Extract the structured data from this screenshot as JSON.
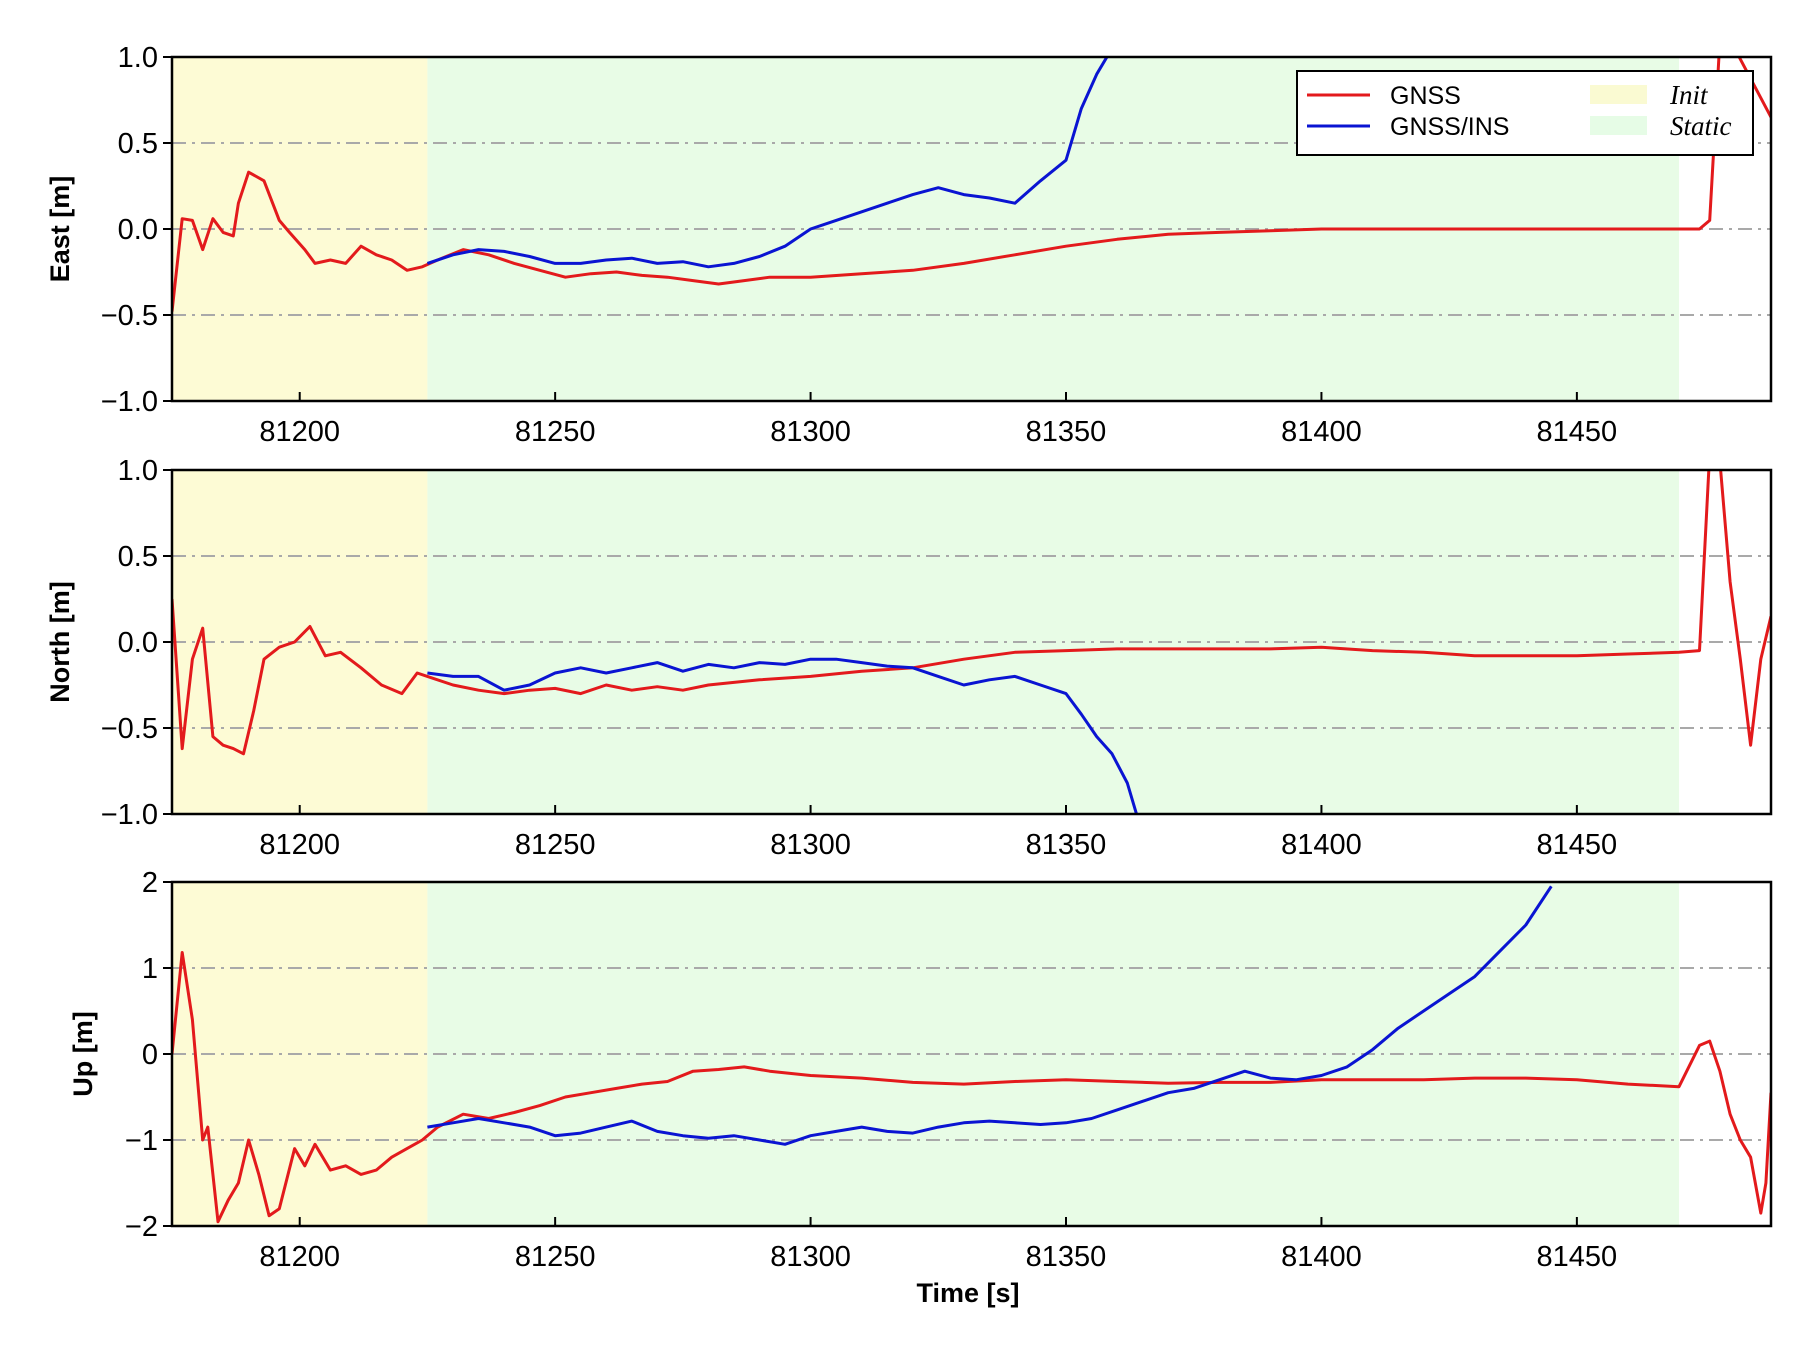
{
  "chart_data": {
    "type": "line",
    "xlabel": "Time [s]",
    "xlim": [
      81175,
      81488
    ],
    "x_ticks": [
      "81200",
      "81250",
      "81300",
      "81350",
      "81400",
      "81450"
    ],
    "x_tick_values": [
      81200,
      81250,
      81300,
      81350,
      81400,
      81450
    ],
    "grid": "horizontal dash-dot",
    "legend": {
      "placement": "top-right",
      "entries": [
        {
          "label": "GNSS",
          "color": "#e31a1c",
          "kind": "line"
        },
        {
          "label": "GNSS/INS",
          "color": "#0a14d2",
          "kind": "line"
        },
        {
          "label": "Init",
          "color": "#fafad2",
          "kind": "patch"
        },
        {
          "label": "Static",
          "color": "#e6fce6",
          "kind": "patch"
        }
      ]
    },
    "shaded_regions": [
      {
        "label": "Init",
        "x": [
          81175,
          81225
        ],
        "color": "#fdfbd5"
      },
      {
        "label": "Static",
        "x": [
          81225,
          81470
        ],
        "color": "#e8fce6"
      }
    ],
    "panels": [
      {
        "ylabel": "East [m]",
        "ylim": [
          -1.0,
          1.0
        ],
        "y_ticks": [
          "1.0",
          "0.5",
          "0.0",
          "−0.5",
          "−1.0"
        ],
        "y_tick_values": [
          1.0,
          0.5,
          0.0,
          -0.5,
          -1.0
        ],
        "grid_values": [
          0.5,
          0.0,
          -0.5
        ],
        "series": [
          {
            "name": "GNSS",
            "color": "#e31a1c",
            "x": [
              81175,
              81177,
              81179,
              81181,
              81183,
              81185,
              81187,
              81188,
              81190,
              81193,
              81196,
              81198,
              81201,
              81203,
              81206,
              81209,
              81212,
              81215,
              81218,
              81221,
              81224,
              81227,
              81232,
              81237,
              81242,
              81247,
              81252,
              81257,
              81262,
              81267,
              81272,
              81277,
              81282,
              81287,
              81292,
              81300,
              81310,
              81320,
              81330,
              81340,
              81350,
              81360,
              81370,
              81380,
              81390,
              81400,
              81410,
              81420,
              81430,
              81440,
              81450,
              81460,
              81470,
              81474,
              81476,
              81478,
              81480,
              81488
            ],
            "values": [
              -0.48,
              0.06,
              0.05,
              -0.12,
              0.06,
              -0.02,
              -0.04,
              0.15,
              0.33,
              0.28,
              0.05,
              -0.02,
              -0.12,
              -0.2,
              -0.18,
              -0.2,
              -0.1,
              -0.15,
              -0.18,
              -0.24,
              -0.22,
              -0.18,
              -0.12,
              -0.15,
              -0.2,
              -0.24,
              -0.28,
              -0.26,
              -0.25,
              -0.27,
              -0.28,
              -0.3,
              -0.32,
              -0.3,
              -0.28,
              -0.28,
              -0.26,
              -0.24,
              -0.2,
              -0.15,
              -0.1,
              -0.06,
              -0.03,
              -0.02,
              -0.01,
              0.0,
              0.0,
              0.0,
              0.0,
              0.0,
              0.0,
              0.0,
              0.0,
              0.0,
              0.05,
              1.1,
              1.1,
              0.65
            ]
          },
          {
            "name": "GNSS/INS",
            "color": "#0a14d2",
            "x": [
              81225,
              81230,
              81235,
              81240,
              81245,
              81250,
              81255,
              81260,
              81265,
              81270,
              81275,
              81280,
              81285,
              81290,
              81295,
              81300,
              81305,
              81310,
              81315,
              81320,
              81325,
              81330,
              81335,
              81340,
              81345,
              81350,
              81353,
              81356,
              81359
            ],
            "values": [
              -0.2,
              -0.15,
              -0.12,
              -0.13,
              -0.16,
              -0.2,
              -0.2,
              -0.18,
              -0.17,
              -0.2,
              -0.19,
              -0.22,
              -0.2,
              -0.16,
              -0.1,
              0.0,
              0.05,
              0.1,
              0.15,
              0.2,
              0.24,
              0.2,
              0.18,
              0.15,
              0.28,
              0.4,
              0.7,
              0.9,
              1.05
            ]
          }
        ]
      },
      {
        "ylabel": "North [m]",
        "ylim": [
          -1.0,
          1.0
        ],
        "y_ticks": [
          "1.0",
          "0.5",
          "0.0",
          "−0.5",
          "−1.0"
        ],
        "y_tick_values": [
          1.0,
          0.5,
          0.0,
          -0.5,
          -1.0
        ],
        "grid_values": [
          0.5,
          0.0,
          -0.5
        ],
        "series": [
          {
            "name": "GNSS",
            "color": "#e31a1c",
            "x": [
              81175,
              81177,
              81179,
              81181,
              81183,
              81185,
              81187,
              81189,
              81191,
              81193,
              81196,
              81199,
              81202,
              81205,
              81208,
              81212,
              81216,
              81220,
              81223,
              81225,
              81230,
              81235,
              81240,
              81245,
              81250,
              81255,
              81260,
              81265,
              81270,
              81275,
              81280,
              81290,
              81300,
              81310,
              81320,
              81330,
              81340,
              81350,
              81360,
              81370,
              81380,
              81390,
              81400,
              81410,
              81420,
              81430,
              81440,
              81450,
              81460,
              81470,
              81474,
              81476,
              81478,
              81480,
              81482,
              81484,
              81486,
              81488
            ],
            "values": [
              0.25,
              -0.62,
              -0.1,
              0.08,
              -0.55,
              -0.6,
              -0.62,
              -0.65,
              -0.4,
              -0.1,
              -0.03,
              0.0,
              0.09,
              -0.08,
              -0.06,
              -0.15,
              -0.25,
              -0.3,
              -0.18,
              -0.2,
              -0.25,
              -0.28,
              -0.3,
              -0.28,
              -0.27,
              -0.3,
              -0.25,
              -0.28,
              -0.26,
              -0.28,
              -0.25,
              -0.22,
              -0.2,
              -0.17,
              -0.15,
              -0.1,
              -0.06,
              -0.05,
              -0.04,
              -0.04,
              -0.04,
              -0.04,
              -0.03,
              -0.05,
              -0.06,
              -0.08,
              -0.08,
              -0.08,
              -0.07,
              -0.06,
              -0.05,
              1.1,
              1.05,
              0.35,
              -0.1,
              -0.6,
              -0.1,
              0.15
            ]
          },
          {
            "name": "GNSS/INS",
            "color": "#0a14d2",
            "x": [
              81225,
              81230,
              81235,
              81240,
              81245,
              81250,
              81255,
              81260,
              81265,
              81270,
              81275,
              81280,
              81285,
              81290,
              81295,
              81300,
              81305,
              81310,
              81315,
              81320,
              81325,
              81330,
              81335,
              81340,
              81345,
              81350,
              81353,
              81356,
              81359,
              81362,
              81364
            ],
            "values": [
              -0.18,
              -0.2,
              -0.2,
              -0.28,
              -0.25,
              -0.18,
              -0.15,
              -0.18,
              -0.15,
              -0.12,
              -0.17,
              -0.13,
              -0.15,
              -0.12,
              -0.13,
              -0.1,
              -0.1,
              -0.12,
              -0.14,
              -0.15,
              -0.2,
              -0.25,
              -0.22,
              -0.2,
              -0.25,
              -0.3,
              -0.42,
              -0.55,
              -0.65,
              -0.82,
              -1.02
            ]
          }
        ]
      },
      {
        "ylabel": "Up [m]",
        "ylim": [
          -2,
          2
        ],
        "y_ticks": [
          "2",
          "1",
          "0",
          "−1",
          "−2"
        ],
        "y_tick_values": [
          2,
          1,
          0,
          -1,
          -2
        ],
        "grid_values": [
          1,
          0,
          -1
        ],
        "series": [
          {
            "name": "GNSS",
            "color": "#e31a1c",
            "x": [
              81175,
              81177,
              81179,
              81181,
              81182,
              81184,
              81186,
              81188,
              81190,
              81192,
              81194,
              81196,
              81199,
              81201,
              81203,
              81206,
              81209,
              81212,
              81215,
              81218,
              81221,
              81224,
              81227,
              81232,
              81237,
              81242,
              81247,
              81252,
              81257,
              81262,
              81267,
              81272,
              81277,
              81282,
              81287,
              81292,
              81300,
              81310,
              81320,
              81330,
              81340,
              81350,
              81360,
              81370,
              81380,
              81390,
              81400,
              81410,
              81420,
              81430,
              81440,
              81450,
              81460,
              81470,
              81474,
              81476,
              81478,
              81480,
              81482,
              81484,
              81486,
              81487,
              81488
            ],
            "values": [
              0.0,
              1.18,
              0.4,
              -1.0,
              -0.85,
              -1.95,
              -1.7,
              -1.5,
              -1.0,
              -1.4,
              -1.88,
              -1.8,
              -1.1,
              -1.3,
              -1.05,
              -1.35,
              -1.3,
              -1.4,
              -1.35,
              -1.2,
              -1.1,
              -1.0,
              -0.85,
              -0.7,
              -0.75,
              -0.68,
              -0.6,
              -0.5,
              -0.45,
              -0.4,
              -0.35,
              -0.32,
              -0.2,
              -0.18,
              -0.15,
              -0.2,
              -0.25,
              -0.28,
              -0.33,
              -0.35,
              -0.32,
              -0.3,
              -0.32,
              -0.34,
              -0.33,
              -0.33,
              -0.3,
              -0.3,
              -0.3,
              -0.28,
              -0.28,
              -0.3,
              -0.35,
              -0.38,
              0.1,
              0.15,
              -0.2,
              -0.7,
              -1.0,
              -1.2,
              -1.85,
              -1.5,
              -0.45
            ]
          },
          {
            "name": "GNSS/INS",
            "color": "#0a14d2",
            "x": [
              81225,
              81230,
              81235,
              81240,
              81245,
              81250,
              81255,
              81260,
              81265,
              81270,
              81275,
              81280,
              81285,
              81290,
              81295,
              81300,
              81305,
              81310,
              81315,
              81320,
              81325,
              81330,
              81335,
              81340,
              81345,
              81350,
              81355,
              81360,
              81365,
              81370,
              81375,
              81380,
              81385,
              81390,
              81395,
              81400,
              81405,
              81410,
              81415,
              81420,
              81425,
              81430,
              81435,
              81440,
              81445
            ],
            "values": [
              -0.85,
              -0.8,
              -0.75,
              -0.8,
              -0.85,
              -0.95,
              -0.92,
              -0.85,
              -0.78,
              -0.9,
              -0.95,
              -0.98,
              -0.95,
              -1.0,
              -1.05,
              -0.95,
              -0.9,
              -0.85,
              -0.9,
              -0.92,
              -0.85,
              -0.8,
              -0.78,
              -0.8,
              -0.82,
              -0.8,
              -0.75,
              -0.65,
              -0.55,
              -0.45,
              -0.4,
              -0.3,
              -0.2,
              -0.28,
              -0.3,
              -0.25,
              -0.15,
              0.05,
              0.3,
              0.5,
              0.7,
              0.9,
              1.2,
              1.5,
              1.95
            ]
          }
        ]
      }
    ]
  }
}
